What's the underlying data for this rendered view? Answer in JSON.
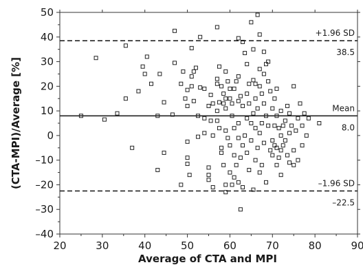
{
  "chart_data": {
    "type": "scatter",
    "xlabel": "Average of CTA and MPI",
    "ylabel": "(CTA-MPI)/Average [%]",
    "xlim": [
      20,
      90
    ],
    "ylim": [
      -40,
      50
    ],
    "xticks": [
      "20",
      "30",
      "40",
      "50",
      "60",
      "70",
      "80",
      "90"
    ],
    "yticks": [
      "–40",
      "–30",
      "–20",
      "–10",
      "0",
      "10",
      "20",
      "30",
      "40",
      "50"
    ],
    "grid": false,
    "marker": "open-square",
    "reference_lines": [
      {
        "label": "+1.96 SD",
        "value_label": "38.5",
        "y": 38.5,
        "style": "dashed"
      },
      {
        "label": "Mean",
        "value_label": "8.0",
        "y": 8.0,
        "style": "solid"
      },
      {
        "label": "–1.96 SD",
        "value_label": "–22.5",
        "y": -22.5,
        "style": "dashed"
      }
    ],
    "points": [
      [
        25,
        8
      ],
      [
        28.5,
        31.5
      ],
      [
        30.5,
        6.5
      ],
      [
        33.5,
        9
      ],
      [
        35.5,
        36.5
      ],
      [
        35.5,
        15
      ],
      [
        37,
        -5
      ],
      [
        38.5,
        18
      ],
      [
        39.5,
        28
      ],
      [
        40,
        25
      ],
      [
        40.5,
        32
      ],
      [
        41.5,
        21
      ],
      [
        43,
        8
      ],
      [
        43,
        -14
      ],
      [
        43.5,
        25
      ],
      [
        44.5,
        13.5
      ],
      [
        44.5,
        -7
      ],
      [
        46.5,
        8.5
      ],
      [
        47,
        42.5
      ],
      [
        47,
        29.5
      ],
      [
        48.5,
        -20
      ],
      [
        48.5,
        21
      ],
      [
        49,
        26
      ],
      [
        49.5,
        15
      ],
      [
        50,
        18.5
      ],
      [
        50,
        12
      ],
      [
        50,
        -2.5
      ],
      [
        50,
        -9
      ],
      [
        50,
        -11.5
      ],
      [
        50.5,
        -16
      ],
      [
        51,
        35.5
      ],
      [
        51,
        24
      ],
      [
        51,
        20
      ],
      [
        51.5,
        14
      ],
      [
        51.5,
        26
      ],
      [
        52,
        27.5
      ],
      [
        52.5,
        8
      ],
      [
        52.5,
        -0.5
      ],
      [
        53,
        19.5
      ],
      [
        53,
        40
      ],
      [
        54,
        19
      ],
      [
        54,
        7
      ],
      [
        54,
        1
      ],
      [
        55,
        12
      ],
      [
        55,
        -13
      ],
      [
        55,
        -16
      ],
      [
        55,
        -18
      ],
      [
        55.5,
        16.5
      ],
      [
        55.5,
        6
      ],
      [
        56,
        13
      ],
      [
        56,
        0
      ],
      [
        56,
        -21
      ],
      [
        57,
        44
      ],
      [
        57,
        23
      ],
      [
        57,
        21
      ],
      [
        57,
        10
      ],
      [
        57,
        6
      ],
      [
        57.5,
        28
      ],
      [
        57.5,
        13.5
      ],
      [
        57.5,
        3
      ],
      [
        58,
        20
      ],
      [
        58,
        -5
      ],
      [
        58,
        -7
      ],
      [
        58.5,
        17
      ],
      [
        58.5,
        13
      ],
      [
        58.5,
        -12
      ],
      [
        59,
        26
      ],
      [
        59,
        15
      ],
      [
        59,
        11
      ],
      [
        59,
        2
      ],
      [
        59,
        -20
      ],
      [
        59,
        -23
      ],
      [
        59.5,
        22
      ],
      [
        59.5,
        -1
      ],
      [
        60,
        19
      ],
      [
        60,
        15
      ],
      [
        60,
        -4
      ],
      [
        60,
        -15
      ],
      [
        60.5,
        13
      ],
      [
        60.5,
        8
      ],
      [
        60.5,
        -20
      ],
      [
        61,
        19
      ],
      [
        61,
        3
      ],
      [
        61,
        -8
      ],
      [
        61,
        -17
      ],
      [
        61.5,
        22
      ],
      [
        61.5,
        -12
      ],
      [
        62,
        39.5
      ],
      [
        62,
        24
      ],
      [
        62,
        14
      ],
      [
        62,
        5
      ],
      [
        62,
        -1
      ],
      [
        62,
        -19
      ],
      [
        62.5,
        16
      ],
      [
        62.5,
        -9
      ],
      [
        62.5,
        -30
      ],
      [
        63,
        38
      ],
      [
        63,
        12
      ],
      [
        63,
        -4
      ],
      [
        63,
        -21
      ],
      [
        63.5,
        33.5
      ],
      [
        63.5,
        0
      ],
      [
        64,
        29
      ],
      [
        64,
        17
      ],
      [
        64,
        7
      ],
      [
        64,
        -7
      ],
      [
        64.5,
        21
      ],
      [
        64.5,
        13
      ],
      [
        64.5,
        -14
      ],
      [
        65,
        46
      ],
      [
        65,
        5
      ],
      [
        65,
        -2
      ],
      [
        65.5,
        35
      ],
      [
        65.5,
        22.5
      ],
      [
        65.5,
        9
      ],
      [
        65.5,
        -22
      ],
      [
        66,
        21
      ],
      [
        66,
        15
      ],
      [
        66,
        3
      ],
      [
        66,
        -10
      ],
      [
        66.5,
        49
      ],
      [
        66.5,
        11
      ],
      [
        66.5,
        -5
      ],
      [
        67,
        41
      ],
      [
        67,
        27
      ],
      [
        67,
        20
      ],
      [
        67,
        1
      ],
      [
        67,
        -15
      ],
      [
        67.5,
        17
      ],
      [
        67.5,
        5
      ],
      [
        67.5,
        -12
      ],
      [
        68,
        34
      ],
      [
        68,
        25
      ],
      [
        68,
        13
      ],
      [
        68,
        -3
      ],
      [
        68.5,
        29
      ],
      [
        68.5,
        8
      ],
      [
        68.5,
        -19
      ],
      [
        69,
        30
      ],
      [
        69,
        22
      ],
      [
        69,
        4
      ],
      [
        69.5,
        18
      ],
      [
        69.5,
        -6
      ],
      [
        70,
        11
      ],
      [
        70,
        -2
      ],
      [
        70,
        -8
      ],
      [
        70.5,
        15
      ],
      [
        70.5,
        4
      ],
      [
        70.5,
        -4
      ],
      [
        71,
        19
      ],
      [
        71,
        8
      ],
      [
        71,
        -5
      ],
      [
        71,
        -12
      ],
      [
        71.5,
        3
      ],
      [
        71.5,
        -9
      ],
      [
        72,
        10
      ],
      [
        72,
        0
      ],
      [
        72,
        -6
      ],
      [
        72,
        -16
      ],
      [
        72.5,
        4
      ],
      [
        72.5,
        -4
      ],
      [
        73,
        6
      ],
      [
        73,
        -2
      ],
      [
        73.5,
        12
      ],
      [
        73.5,
        -8
      ],
      [
        74,
        9
      ],
      [
        74,
        1
      ],
      [
        74,
        -11
      ],
      [
        74.5,
        4
      ],
      [
        75,
        20
      ],
      [
        75,
        -6
      ],
      [
        75,
        -12
      ],
      [
        75.5,
        2
      ],
      [
        76,
        7
      ],
      [
        76,
        -10
      ],
      [
        76.5,
        13
      ],
      [
        77,
        4
      ],
      [
        77,
        -4
      ],
      [
        77.5,
        9
      ],
      [
        78,
        0
      ],
      [
        78.5,
        7
      ],
      [
        81,
        5
      ]
    ]
  }
}
